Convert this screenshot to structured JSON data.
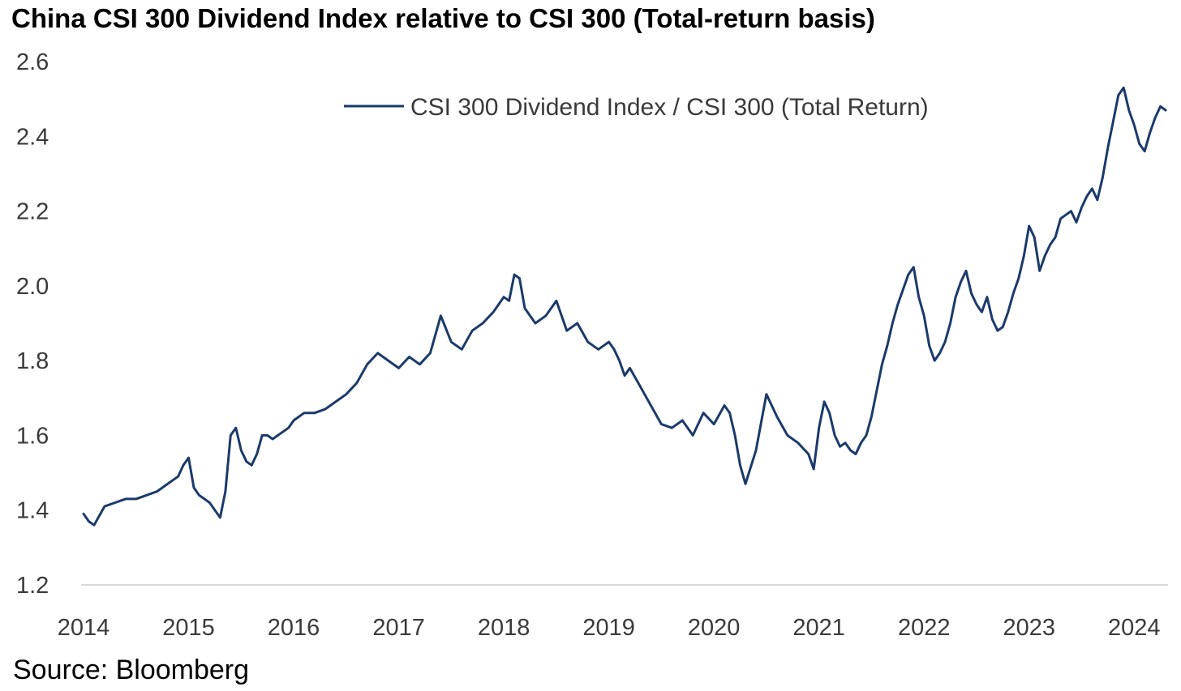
{
  "title": "China CSI 300 Dividend Index relative to CSI 300 (Total-return basis)",
  "source": "Source: Bloomberg",
  "colors": {
    "line": "#1b3a6b",
    "axis": "#d9d9d9",
    "text": "#3a3a3a"
  },
  "chart_data": {
    "type": "line",
    "title": "China CSI 300 Dividend Index relative to CSI 300 (Total-return basis)",
    "xlabel": "",
    "ylabel": "",
    "ylim": [
      1.2,
      2.6
    ],
    "xlim": [
      2014.0,
      2024.33
    ],
    "y_ticks": [
      "1.2",
      "1.4",
      "1.6",
      "1.8",
      "2.0",
      "2.2",
      "2.4",
      "2.6"
    ],
    "x_ticks": [
      "2014",
      "2015",
      "2016",
      "2017",
      "2018",
      "2019",
      "2020",
      "2021",
      "2022",
      "2023",
      "2024"
    ],
    "grid": false,
    "legend_position": "top-center",
    "series": [
      {
        "name": "CSI 300 Dividend Index / CSI 300 (Total Return)",
        "x": [
          2014.0,
          2014.05,
          2014.1,
          2014.2,
          2014.3,
          2014.4,
          2014.5,
          2014.6,
          2014.7,
          2014.8,
          2014.9,
          2014.95,
          2015.0,
          2015.05,
          2015.1,
          2015.15,
          2015.2,
          2015.25,
          2015.3,
          2015.35,
          2015.4,
          2015.45,
          2015.5,
          2015.55,
          2015.6,
          2015.65,
          2015.7,
          2015.75,
          2015.8,
          2015.85,
          2015.9,
          2015.95,
          2016.0,
          2016.1,
          2016.2,
          2016.3,
          2016.4,
          2016.5,
          2016.6,
          2016.7,
          2016.8,
          2016.9,
          2017.0,
          2017.1,
          2017.2,
          2017.3,
          2017.4,
          2017.5,
          2017.6,
          2017.7,
          2017.8,
          2017.9,
          2018.0,
          2018.05,
          2018.1,
          2018.15,
          2018.2,
          2018.3,
          2018.4,
          2018.5,
          2018.6,
          2018.7,
          2018.8,
          2018.85,
          2018.9,
          2018.95,
          2019.0,
          2019.05,
          2019.1,
          2019.15,
          2019.2,
          2019.3,
          2019.4,
          2019.5,
          2019.6,
          2019.7,
          2019.8,
          2019.9,
          2020.0,
          2020.1,
          2020.15,
          2020.2,
          2020.25,
          2020.3,
          2020.4,
          2020.5,
          2020.55,
          2020.6,
          2020.7,
          2020.8,
          2020.9,
          2020.95,
          2021.0,
          2021.05,
          2021.1,
          2021.15,
          2021.2,
          2021.25,
          2021.3,
          2021.35,
          2021.4,
          2021.45,
          2021.5,
          2021.55,
          2021.6,
          2021.65,
          2021.7,
          2021.75,
          2021.8,
          2021.85,
          2021.9,
          2021.95,
          2022.0,
          2022.05,
          2022.1,
          2022.15,
          2022.2,
          2022.25,
          2022.3,
          2022.35,
          2022.4,
          2022.45,
          2022.5,
          2022.55,
          2022.6,
          2022.65,
          2022.7,
          2022.75,
          2022.8,
          2022.85,
          2022.9,
          2022.95,
          2023.0,
          2023.05,
          2023.1,
          2023.15,
          2023.2,
          2023.25,
          2023.3,
          2023.35,
          2023.4,
          2023.45,
          2023.5,
          2023.55,
          2023.6,
          2023.65,
          2023.7,
          2023.75,
          2023.8,
          2023.85,
          2023.9,
          2023.95,
          2024.0,
          2024.05,
          2024.1,
          2024.15,
          2024.2,
          2024.25,
          2024.3
        ],
        "y": [
          1.39,
          1.37,
          1.36,
          1.41,
          1.42,
          1.43,
          1.43,
          1.44,
          1.45,
          1.47,
          1.49,
          1.52,
          1.54,
          1.46,
          1.44,
          1.43,
          1.42,
          1.4,
          1.38,
          1.45,
          1.6,
          1.62,
          1.56,
          1.53,
          1.52,
          1.55,
          1.6,
          1.6,
          1.59,
          1.6,
          1.61,
          1.62,
          1.64,
          1.66,
          1.66,
          1.67,
          1.69,
          1.71,
          1.74,
          1.79,
          1.82,
          1.8,
          1.78,
          1.81,
          1.79,
          1.82,
          1.92,
          1.85,
          1.83,
          1.88,
          1.9,
          1.93,
          1.97,
          1.96,
          2.03,
          2.02,
          1.94,
          1.9,
          1.92,
          1.96,
          1.88,
          1.9,
          1.85,
          1.84,
          1.83,
          1.84,
          1.85,
          1.83,
          1.8,
          1.76,
          1.78,
          1.73,
          1.68,
          1.63,
          1.62,
          1.64,
          1.6,
          1.66,
          1.63,
          1.68,
          1.66,
          1.6,
          1.52,
          1.47,
          1.56,
          1.71,
          1.68,
          1.65,
          1.6,
          1.58,
          1.55,
          1.51,
          1.62,
          1.69,
          1.66,
          1.6,
          1.57,
          1.58,
          1.56,
          1.55,
          1.58,
          1.6,
          1.65,
          1.72,
          1.79,
          1.84,
          1.9,
          1.95,
          1.99,
          2.03,
          2.05,
          1.97,
          1.92,
          1.84,
          1.8,
          1.82,
          1.85,
          1.9,
          1.97,
          2.01,
          2.04,
          1.98,
          1.95,
          1.93,
          1.97,
          1.91,
          1.88,
          1.89,
          1.93,
          1.98,
          2.02,
          2.08,
          2.16,
          2.13,
          2.04,
          2.08,
          2.11,
          2.13,
          2.18,
          2.19,
          2.2,
          2.17,
          2.21,
          2.24,
          2.26,
          2.23,
          2.29,
          2.37,
          2.44,
          2.51,
          2.53,
          2.47,
          2.43,
          2.38,
          2.36,
          2.41,
          2.45,
          2.48,
          2.47
        ]
      }
    ]
  }
}
